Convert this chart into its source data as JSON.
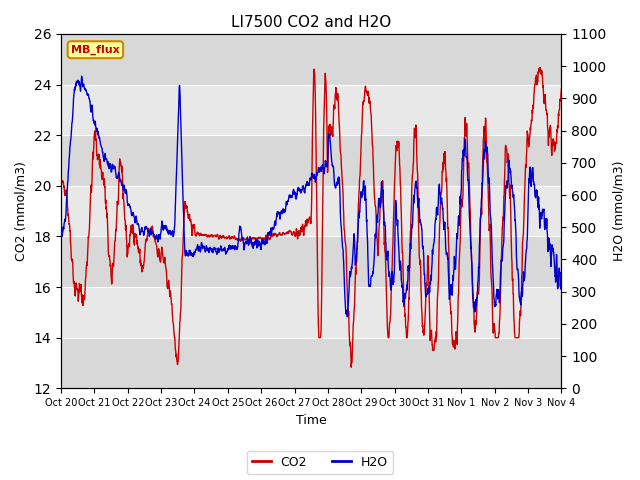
{
  "title": "LI7500 CO2 and H2O",
  "xlabel": "Time",
  "ylabel_left": "CO2 (mmol/m3)",
  "ylabel_right": "H2O (mmol/m3)",
  "ylim_left": [
    12,
    26
  ],
  "ylim_right": [
    0,
    1100
  ],
  "yticks_left": [
    12,
    14,
    16,
    18,
    20,
    22,
    24,
    26
  ],
  "yticks_right": [
    0,
    100,
    200,
    300,
    400,
    500,
    600,
    700,
    800,
    900,
    1000,
    1100
  ],
  "xtick_labels": [
    "Oct 20",
    "Oct 21",
    "Oct 22",
    "Oct 23",
    "Oct 24",
    "Oct 25",
    "Oct 26",
    "Oct 27",
    "Oct 28",
    "Oct 29",
    "Oct 30",
    "Oct 31",
    "Nov 1",
    "Nov 2",
    "Nov 3",
    "Nov 4"
  ],
  "co2_color": "#cc0000",
  "h2o_color": "#0000cc",
  "fig_bg": "#ffffff",
  "plot_bg": "#e8e8e8",
  "band_color_dark": "#d8d8d8",
  "band_color_light": "#e8e8e8",
  "grid_color": "#ffffff",
  "annotation_text": "MB_flux",
  "annotation_bg": "#ffff99",
  "annotation_border": "#cc8800",
  "annotation_text_color": "#cc0000",
  "legend_co2": "CO2",
  "legend_h2o": "H2O",
  "line_width": 1.0,
  "n_days": 15,
  "pts_per_day": 120
}
